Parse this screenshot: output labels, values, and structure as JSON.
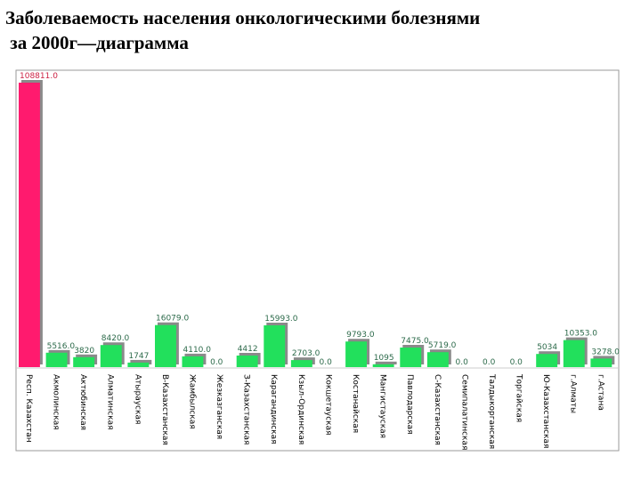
{
  "page": {
    "title_line1": "Заболеваемость населения онкологическими болезнями",
    "title_line2": " за 2000г—диаграмма"
  },
  "chart_data": {
    "type": "bar",
    "title": "Заболеваемость населения онкологическими болезнями за 2000г—диаграмма",
    "xlabel": "",
    "ylabel": "",
    "ylim": [
      0,
      108811
    ],
    "grid": false,
    "legend": "none",
    "categories": [
      "Респ. Казахстан",
      "Акмолинская",
      "Актюбинская",
      "Алматинская",
      "Атырауская",
      "В-Казахстанская",
      "Жамбылская",
      "Жезказганская",
      "З-Казахстанская",
      "Карагандинская",
      "Кзыл-Ординская",
      "Кокшетауская",
      "Костанайская",
      "Мангистауская",
      "Павлодарская",
      "С-Казахстанская",
      "Семипалатинская",
      "Талдыкорганская",
      "Торгайская",
      "Ю-Казахстанская",
      "г.Алматы",
      "г.Астана"
    ],
    "values": [
      108811,
      5516,
      3820,
      8420,
      1747,
      16079,
      4110,
      0,
      4412,
      15993,
      2703,
      0,
      9793,
      1095,
      7475,
      5719,
      0,
      0,
      0,
      5034,
      10353,
      3278
    ],
    "value_labels": [
      "108811.0",
      "5516.0",
      "3820",
      "8420.0",
      "1747",
      "16079.0",
      "4110.0",
      "0.0",
      "4412",
      "15993.0",
      "2703.0",
      "0.0",
      "9793.0",
      "1095",
      "7475.0",
      "5719.0",
      "0.0",
      "0.0",
      "0.0",
      "5034",
      "10353.0",
      "3278.0"
    ],
    "colors": {
      "highlight": "#ff1a6e",
      "bar": "#22e05c",
      "shadow": "#8a8a8a",
      "label_highlight": "#cc2244",
      "label": "#2c6a4a",
      "frame": "#9a9a9a"
    }
  }
}
